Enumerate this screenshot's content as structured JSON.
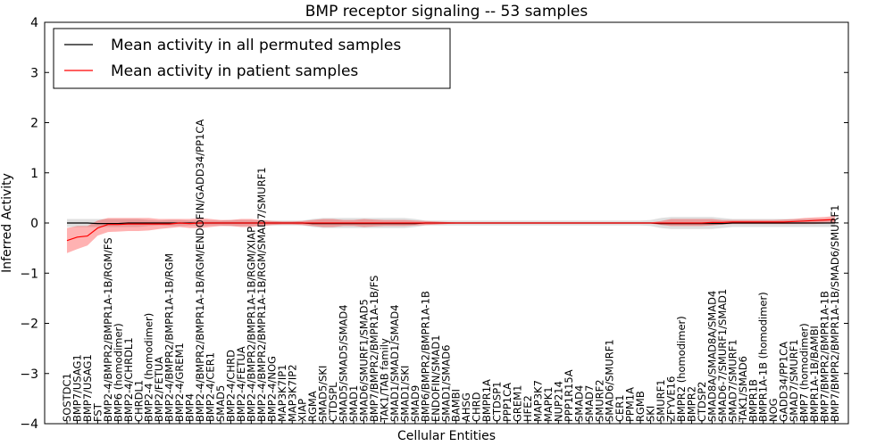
{
  "chart_data": {
    "type": "line",
    "title": "BMP receptor signaling -- 53 samples",
    "xlabel": "Cellular Entities",
    "ylabel": "Inferred Activity",
    "ylim": [
      -4,
      4
    ],
    "yticks": [
      -4,
      -3,
      -2,
      -1,
      0,
      1,
      2,
      3,
      4
    ],
    "grid": false,
    "legend_position": "top-left",
    "categories": [
      "SOSTDC1",
      "BMP7/USAG1",
      "BMP7/USAG1",
      "FST",
      "BMP2-4/BMPR2/BMPR1A-1B/RGM/FS",
      "BMP6 (homodimer)",
      "BMP2-4/CHRDL1",
      "CHRDL1",
      "BMP2-4 (homodimer)",
      "BMP2/FETUA",
      "BMP2-4/BMPR2/BMPR1A-1B/RGM",
      "BMP2-4/GREM1",
      "BMP4",
      "BMP2-4/BMPR2/BMPR1A-1B/RGM/ENDOFIN/GADD34/PP1CA",
      "BMP2-4/CER1",
      "SMAD5",
      "BMP2-4/CHRD",
      "BMP2-4/FETUA",
      "BMP2-4/BMPR2/BMPR1A-1B/RGM/XIAP",
      "BMP2-4/BMPR2/BMPR1A-1B/RGM/SMAD7/SMURF1",
      "BMP2-4/NOG",
      "MAP3K7IP1",
      "MAP3K7IP2",
      "XIAP",
      "RGMA",
      "SMAD5/SKI",
      "CTDSPL",
      "SMAD5/SMAD5/SMAD4",
      "SMAD1",
      "SMAD6/SMURF1/SMAD5",
      "BMP7/BMPR2/BMPR1A-1B/FS",
      "TAK1/TAB family",
      "SMAD1/SMAD1/SMAD4",
      "SMAD1/SKI",
      "SMAD9",
      "BMP6/BMPR2/BMPR1A-1B",
      "ENDOFIN/SMAD1",
      "SMAD1/SMAD6",
      "BAMBI",
      "AHSG",
      "CHRD",
      "BMPR1A",
      "CTDSP1",
      "PPP1CA",
      "GREM1",
      "HFE2",
      "MAP3K7",
      "MAPK1",
      "NUP214",
      "PPP1R15A",
      "SMAD4",
      "SMAD7",
      "SMURF2",
      "SMAD6/SMURF1",
      "CER1",
      "PPM1A",
      "RGMB",
      "SKI",
      "SMURF1",
      "ZFYVE16",
      "BMPR2 (homodimer)",
      "BMPR2",
      "CTDSP2",
      "SMAD8A/SMAD8A/SMAD4",
      "SMAD6-7/SMURF1/SMAD1",
      "SMAD7/SMURF1",
      "TAK1/SMAD6",
      "BMPR1B",
      "BMPR1A-1B (homodimer)",
      "NOG",
      "GADD34/PP1CA",
      "SMAD7/SMURF1",
      "BMP7 (homodimer)",
      "BMPR1A-1B/BAMBI",
      "BMP7/BMPR2/BMPR1A-1B",
      "BMP7/BMPR2/BMPR1A-1B/SMAD6/SMURF1"
    ],
    "series": [
      {
        "name": "Mean activity in all permuted samples",
        "color": "#000000",
        "values": [
          0.0,
          0.0,
          0.0,
          -0.01,
          -0.01,
          -0.01,
          0.0,
          0.0,
          0.0,
          0.0,
          0.0,
          0.0,
          0.0,
          0.0,
          0.0,
          0.0,
          0.0,
          0.0,
          0.0,
          0.0,
          0.0,
          0.0,
          0.0,
          0.0,
          -0.01,
          -0.01,
          -0.01,
          -0.01,
          -0.01,
          -0.01,
          -0.01,
          -0.01,
          -0.01,
          -0.01,
          -0.01,
          0.0,
          0.0,
          0.0,
          0.0,
          0.0,
          0.0,
          0.0,
          0.0,
          0.0,
          0.0,
          0.0,
          0.0,
          0.0,
          0.0,
          0.0,
          0.0,
          0.0,
          0.0,
          0.0,
          0.0,
          0.0,
          0.0,
          0.0,
          -0.01,
          -0.01,
          -0.01,
          -0.01,
          -0.01,
          -0.01,
          -0.01,
          0.0,
          0.0,
          0.0,
          0.0,
          0.0,
          0.0,
          0.0,
          0.0,
          0.0,
          0.0,
          0.0
        ],
        "band_low": [
          -0.08,
          -0.08,
          -0.08,
          -0.08,
          -0.08,
          -0.08,
          -0.08,
          -0.08,
          -0.06,
          -0.05,
          -0.06,
          -0.06,
          -0.05,
          -0.06,
          -0.05,
          -0.05,
          -0.06,
          -0.06,
          -0.06,
          -0.05,
          -0.05,
          -0.05,
          -0.05,
          -0.05,
          -0.08,
          -0.1,
          -0.1,
          -0.1,
          -0.1,
          -0.1,
          -0.1,
          -0.1,
          -0.1,
          -0.1,
          -0.08,
          -0.05,
          -0.05,
          -0.05,
          -0.05,
          -0.05,
          -0.05,
          -0.05,
          -0.05,
          -0.05,
          -0.05,
          -0.05,
          -0.05,
          -0.05,
          -0.05,
          -0.05,
          -0.05,
          -0.05,
          -0.05,
          -0.05,
          -0.05,
          -0.05,
          -0.05,
          -0.06,
          -0.1,
          -0.12,
          -0.12,
          -0.12,
          -0.12,
          -0.12,
          -0.1,
          -0.08,
          -0.08,
          -0.08,
          -0.08,
          -0.08,
          -0.08,
          -0.08,
          -0.08,
          -0.08,
          -0.08,
          -0.08
        ],
        "band_high": [
          0.08,
          0.08,
          0.08,
          0.08,
          0.08,
          0.08,
          0.08,
          0.08,
          0.06,
          0.05,
          0.06,
          0.06,
          0.05,
          0.06,
          0.05,
          0.05,
          0.06,
          0.06,
          0.06,
          0.05,
          0.05,
          0.05,
          0.05,
          0.05,
          0.08,
          0.1,
          0.1,
          0.1,
          0.1,
          0.1,
          0.1,
          0.1,
          0.1,
          0.1,
          0.08,
          0.05,
          0.05,
          0.05,
          0.05,
          0.05,
          0.05,
          0.05,
          0.05,
          0.05,
          0.05,
          0.05,
          0.05,
          0.05,
          0.05,
          0.05,
          0.05,
          0.05,
          0.05,
          0.05,
          0.05,
          0.05,
          0.05,
          0.06,
          0.1,
          0.12,
          0.12,
          0.12,
          0.12,
          0.12,
          0.1,
          0.08,
          0.08,
          0.08,
          0.08,
          0.08,
          0.08,
          0.08,
          0.08,
          0.08,
          0.08,
          0.08
        ]
      },
      {
        "name": "Mean activity in patient samples",
        "color": "#ff0000",
        "values": [
          -0.35,
          -0.28,
          -0.26,
          -0.1,
          -0.03,
          -0.03,
          -0.02,
          -0.02,
          -0.02,
          -0.02,
          -0.02,
          0.0,
          -0.01,
          0.0,
          0.0,
          0.0,
          0.0,
          0.0,
          0.0,
          0.0,
          0.0,
          0.0,
          0.0,
          0.0,
          0.0,
          0.0,
          0.0,
          0.0,
          0.0,
          0.0,
          0.0,
          0.0,
          0.0,
          0.0,
          0.0,
          0.0,
          0.0,
          0.0,
          0.0,
          0.0,
          0.0,
          0.0,
          0.0,
          0.0,
          0.0,
          0.0,
          0.0,
          0.0,
          0.0,
          0.0,
          0.0,
          0.0,
          0.0,
          0.0,
          0.0,
          0.0,
          0.0,
          0.0,
          0.0,
          0.0,
          0.0,
          0.0,
          0.0,
          0.01,
          0.01,
          0.02,
          0.02,
          0.02,
          0.02,
          0.02,
          0.02,
          0.03,
          0.04,
          0.05,
          0.06,
          0.07
        ],
        "band_low": [
          -0.6,
          -0.52,
          -0.45,
          -0.25,
          -0.18,
          -0.17,
          -0.16,
          -0.16,
          -0.15,
          -0.12,
          -0.1,
          -0.08,
          -0.1,
          -0.1,
          -0.08,
          -0.06,
          -0.06,
          -0.08,
          -0.08,
          -0.06,
          -0.04,
          -0.03,
          -0.03,
          -0.04,
          -0.06,
          -0.08,
          -0.08,
          -0.06,
          -0.06,
          -0.08,
          -0.07,
          -0.06,
          -0.06,
          -0.06,
          -0.05,
          -0.04,
          -0.03,
          -0.02,
          -0.01,
          -0.01,
          -0.01,
          -0.01,
          -0.01,
          -0.01,
          -0.01,
          -0.01,
          -0.01,
          -0.01,
          -0.01,
          -0.01,
          -0.01,
          -0.01,
          -0.01,
          -0.01,
          -0.01,
          -0.01,
          -0.01,
          -0.01,
          -0.04,
          -0.06,
          -0.06,
          -0.06,
          -0.06,
          -0.05,
          -0.03,
          -0.02,
          -0.02,
          -0.02,
          -0.02,
          -0.02,
          -0.02,
          -0.02,
          -0.02,
          -0.02,
          -0.01,
          0.0
        ],
        "band_high": [
          -0.1,
          -0.06,
          -0.06,
          0.05,
          0.1,
          0.1,
          0.1,
          0.1,
          0.1,
          0.08,
          0.08,
          0.08,
          0.08,
          0.1,
          0.08,
          0.06,
          0.06,
          0.08,
          0.08,
          0.06,
          0.04,
          0.03,
          0.03,
          0.04,
          0.06,
          0.08,
          0.08,
          0.06,
          0.06,
          0.08,
          0.07,
          0.06,
          0.06,
          0.06,
          0.05,
          0.04,
          0.03,
          0.02,
          0.01,
          0.01,
          0.01,
          0.01,
          0.01,
          0.01,
          0.01,
          0.01,
          0.01,
          0.01,
          0.01,
          0.01,
          0.01,
          0.01,
          0.01,
          0.01,
          0.01,
          0.01,
          0.01,
          0.01,
          0.04,
          0.08,
          0.08,
          0.08,
          0.08,
          0.08,
          0.06,
          0.06,
          0.06,
          0.06,
          0.06,
          0.06,
          0.07,
          0.08,
          0.1,
          0.11,
          0.12,
          0.14
        ]
      }
    ]
  }
}
